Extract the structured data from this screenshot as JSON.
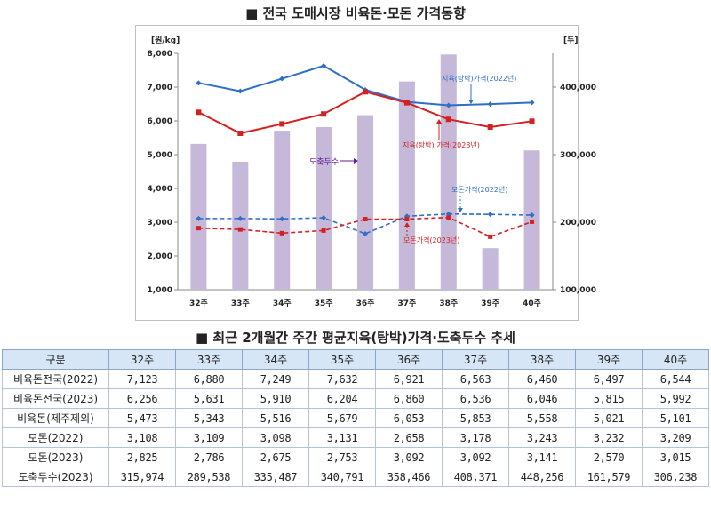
{
  "chart_title": "■ 전국 도매시장 비육돈·모돈 가격동향",
  "table_title": "■ 최근 2개월간 주간 평균지육(탕박)가격·도축두수 추세",
  "chart_data": {
    "type": "bar+line",
    "categories": [
      "32주",
      "33주",
      "34주",
      "35주",
      "36주",
      "37주",
      "38주",
      "39주",
      "40주"
    ],
    "y_left": {
      "label": "[원/kg]",
      "range": [
        1000,
        8000
      ],
      "ticks": [
        "1,000",
        "2,000",
        "3,000",
        "4,000",
        "5,000",
        "6,000",
        "7,000",
        "8,000"
      ]
    },
    "y_right": {
      "label": "[두]",
      "range": [
        100000,
        450000
      ],
      "ticks": [
        "100,000",
        "200,000",
        "300,000",
        "400,000"
      ]
    },
    "bars": {
      "name": "도축두수",
      "axis": "right",
      "color": "#c5b8d8",
      "values": [
        315974,
        289538,
        335487,
        340791,
        358466,
        408371,
        448256,
        161579,
        306238
      ]
    },
    "series": [
      {
        "name": "지육(탕박)가격(2022년)",
        "axis": "left",
        "color": "#2e6fc7",
        "dash": false,
        "values": [
          7123,
          6880,
          7249,
          7632,
          6921,
          6563,
          6460,
          6497,
          6544
        ]
      },
      {
        "name": "지육(탕박) 가격(2023년)",
        "axis": "left",
        "color": "#d42020",
        "dash": false,
        "values": [
          6256,
          5631,
          5910,
          6204,
          6860,
          6536,
          6046,
          5815,
          5992
        ]
      },
      {
        "name": "모돈가격(2022년)",
        "axis": "left",
        "color": "#2e6fc7",
        "dash": true,
        "values": [
          3108,
          3109,
          3098,
          3131,
          2658,
          3178,
          3243,
          3232,
          3209
        ]
      },
      {
        "name": "모돈가격(2023년)",
        "axis": "left",
        "color": "#d42020",
        "dash": true,
        "values": [
          2825,
          2786,
          2675,
          2753,
          3092,
          3092,
          3141,
          2570,
          3015
        ]
      }
    ],
    "annotations": [
      "지육(탕박)가격(2022년)",
      "지육(탕박) 가격(2023년)",
      "도축두수",
      "모돈가격(2022년)",
      "모돈가격(2023년)"
    ]
  },
  "table": {
    "headers": [
      "구분",
      "32주",
      "33주",
      "34주",
      "35주",
      "36주",
      "37주",
      "38주",
      "39주",
      "40주"
    ],
    "rows": [
      [
        "비육돈전국(2022)",
        "7,123",
        "6,880",
        "7,249",
        "7,632",
        "6,921",
        "6,563",
        "6,460",
        "6,497",
        "6,544"
      ],
      [
        "비육돈전국(2023)",
        "6,256",
        "5,631",
        "5,910",
        "6,204",
        "6,860",
        "6,536",
        "6,046",
        "5,815",
        "5,992"
      ],
      [
        "비육돈(제주제외)",
        "5,473",
        "5,343",
        "5,516",
        "5,679",
        "6,053",
        "5,853",
        "5,558",
        "5,021",
        "5,101"
      ],
      [
        "모돈(2022)",
        "3,108",
        "3,109",
        "3,098",
        "3,131",
        "2,658",
        "3,178",
        "3,243",
        "3,232",
        "3,209"
      ],
      [
        "모돈(2023)",
        "2,825",
        "2,786",
        "2,675",
        "2,753",
        "3,092",
        "3,092",
        "3,141",
        "2,570",
        "3,015"
      ],
      [
        "도축두수(2023)",
        "315,974",
        "289,538",
        "335,487",
        "340,791",
        "358,466",
        "408,371",
        "448,256",
        "161,579",
        "306,238"
      ]
    ]
  }
}
